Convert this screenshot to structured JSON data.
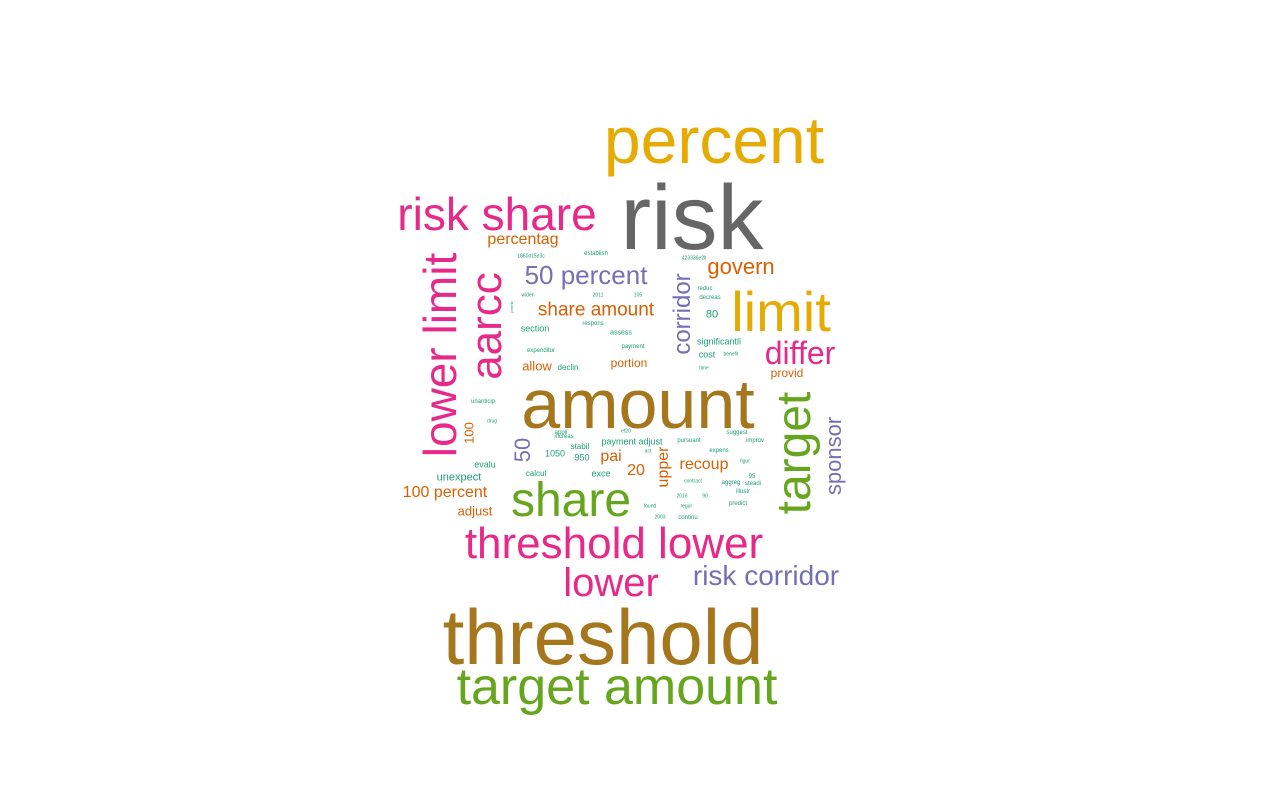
{
  "word_cloud": {
    "colors": {
      "gray": "#666666",
      "gold": "#E6AB02",
      "brown": "#A6761D",
      "magenta": "#E7298A",
      "green": "#66A61E",
      "purple": "#7570B3",
      "orange": "#D95F02",
      "teal": "#1B9E77"
    },
    "words": [
      {
        "id": "risk",
        "text": "risk",
        "color": "gray"
      },
      {
        "id": "percent",
        "text": "percent",
        "color": "gold"
      },
      {
        "id": "risk-share",
        "text": "risk share",
        "color": "magenta"
      },
      {
        "id": "amount",
        "text": "amount",
        "color": "brown"
      },
      {
        "id": "threshold",
        "text": "threshold",
        "color": "brown"
      },
      {
        "id": "target-amount",
        "text": "target amount",
        "color": "green"
      },
      {
        "id": "limit",
        "text": "limit",
        "color": "gold"
      },
      {
        "id": "lower-limit",
        "text": "lower limit",
        "color": "magenta"
      },
      {
        "id": "aarcc",
        "text": "aarcc",
        "color": "magenta"
      },
      {
        "id": "target",
        "text": "target",
        "color": "green"
      },
      {
        "id": "share",
        "text": "share",
        "color": "green"
      },
      {
        "id": "threshold-lower",
        "text": "threshold lower",
        "color": "magenta"
      },
      {
        "id": "lower",
        "text": "lower",
        "color": "magenta"
      },
      {
        "id": "risk-corridor",
        "text": "risk corridor",
        "color": "purple"
      },
      {
        "id": "differ",
        "text": "differ",
        "color": "magenta"
      },
      {
        "id": "corridor",
        "text": "corridor",
        "color": "purple"
      },
      {
        "id": "50-percent",
        "text": "50 percent",
        "color": "purple"
      },
      {
        "id": "govern",
        "text": "govern",
        "color": "orange"
      },
      {
        "id": "sponsor",
        "text": "sponsor",
        "color": "purple"
      },
      {
        "id": "percentag",
        "text": "percentag",
        "color": "orange"
      },
      {
        "id": "share-amount",
        "text": "share amount",
        "color": "orange"
      },
      {
        "id": "50",
        "text": "50",
        "color": "purple"
      },
      {
        "id": "100-percent",
        "text": "100 percent",
        "color": "orange"
      },
      {
        "id": "recoup",
        "text": "recoup",
        "color": "orange"
      },
      {
        "id": "upper",
        "text": "upper",
        "color": "orange"
      },
      {
        "id": "pai",
        "text": "pai",
        "color": "orange"
      },
      {
        "id": "20",
        "text": "20",
        "color": "orange"
      },
      {
        "id": "100",
        "text": "100",
        "color": "orange"
      },
      {
        "id": "allow",
        "text": "allow",
        "color": "orange"
      },
      {
        "id": "portion",
        "text": "portion",
        "color": "orange"
      },
      {
        "id": "provid",
        "text": "provid",
        "color": "orange"
      },
      {
        "id": "adjust",
        "text": "adjust",
        "color": "orange"
      },
      {
        "id": "unexpect",
        "text": "unexpect",
        "color": "teal"
      },
      {
        "id": "evalu",
        "text": "evalu",
        "color": "teal"
      },
      {
        "id": "80",
        "text": "80",
        "color": "teal"
      },
      {
        "id": "section",
        "text": "section",
        "color": "teal"
      },
      {
        "id": "significantli",
        "text": "significantli",
        "color": "teal"
      },
      {
        "id": "cost",
        "text": "cost",
        "color": "teal"
      },
      {
        "id": "payment-adjust",
        "text": "payment adjust",
        "color": "teal"
      },
      {
        "id": "1050",
        "text": "1050",
        "color": "teal"
      },
      {
        "id": "950",
        "text": "950",
        "color": "teal"
      },
      {
        "id": "stabil",
        "text": "stabil",
        "color": "teal"
      },
      {
        "id": "calcul",
        "text": "calcul",
        "color": "teal"
      },
      {
        "id": "exce",
        "text": "exce",
        "color": "teal"
      },
      {
        "id": "declin",
        "text": "declin",
        "color": "teal"
      },
      {
        "id": "expenditur",
        "text": "expenditur",
        "color": "teal"
      },
      {
        "id": "respons",
        "text": "respons",
        "color": "teal"
      },
      {
        "id": "assess",
        "text": "assess",
        "color": "teal"
      },
      {
        "id": "payment",
        "text": "payment",
        "color": "teal"
      },
      {
        "id": "establish",
        "text": "establish",
        "color": "teal"
      },
      {
        "id": "widen",
        "text": "widen",
        "color": "teal"
      },
      {
        "id": "2011",
        "text": "2011",
        "color": "teal"
      },
      {
        "id": "105",
        "text": "105",
        "color": "teal"
      },
      {
        "id": "decreas",
        "text": "decreas",
        "color": "teal"
      },
      {
        "id": "reduc",
        "text": "reduc",
        "color": "teal"
      },
      {
        "id": "benefit",
        "text": "benefit",
        "color": "teal"
      },
      {
        "id": "time",
        "text": "time",
        "color": "teal"
      },
      {
        "id": "unanticip",
        "text": "unanticip",
        "color": "teal"
      },
      {
        "id": "drug",
        "text": "drug",
        "color": "teal"
      },
      {
        "id": "appli",
        "text": "appli",
        "color": "teal"
      },
      {
        "id": "increas",
        "text": "increas",
        "color": "teal"
      },
      {
        "id": "pursuant",
        "text": "pursuant",
        "color": "teal"
      },
      {
        "id": "suggest",
        "text": "suggest",
        "color": "teal"
      },
      {
        "id": "improv",
        "text": "improv",
        "color": "teal"
      },
      {
        "id": "expens",
        "text": "expens",
        "color": "teal"
      },
      {
        "id": "figur",
        "text": "figur",
        "color": "teal"
      },
      {
        "id": "contract",
        "text": "contract",
        "color": "teal"
      },
      {
        "id": "aggreg",
        "text": "aggreg",
        "color": "teal"
      },
      {
        "id": "steadi",
        "text": "steadi",
        "color": "teal"
      },
      {
        "id": "illustr",
        "text": "illustr",
        "color": "teal"
      },
      {
        "id": "2016",
        "text": "2016",
        "color": "teal"
      },
      {
        "id": "90",
        "text": "90",
        "color": "teal"
      },
      {
        "id": "found",
        "text": "found",
        "color": "teal"
      },
      {
        "id": "regul",
        "text": "regul",
        "color": "teal"
      },
      {
        "id": "predict",
        "text": "predict",
        "color": "teal"
      },
      {
        "id": "continu",
        "text": "continu",
        "color": "teal"
      },
      {
        "id": "2003",
        "text": "2003",
        "color": "teal"
      },
      {
        "id": "95",
        "text": "95",
        "color": "teal"
      },
      {
        "id": "1860d15e3c",
        "text": "1860d15e3c",
        "color": "teal"
      },
      {
        "id": "423336e2ll",
        "text": "423336e2ll",
        "color": "teal"
      },
      {
        "id": "permit",
        "text": "permit",
        "color": "teal"
      },
      {
        "id": "act",
        "text": "act",
        "color": "teal"
      },
      {
        "id": "ef20",
        "text": "ef20",
        "color": "teal"
      }
    ]
  }
}
